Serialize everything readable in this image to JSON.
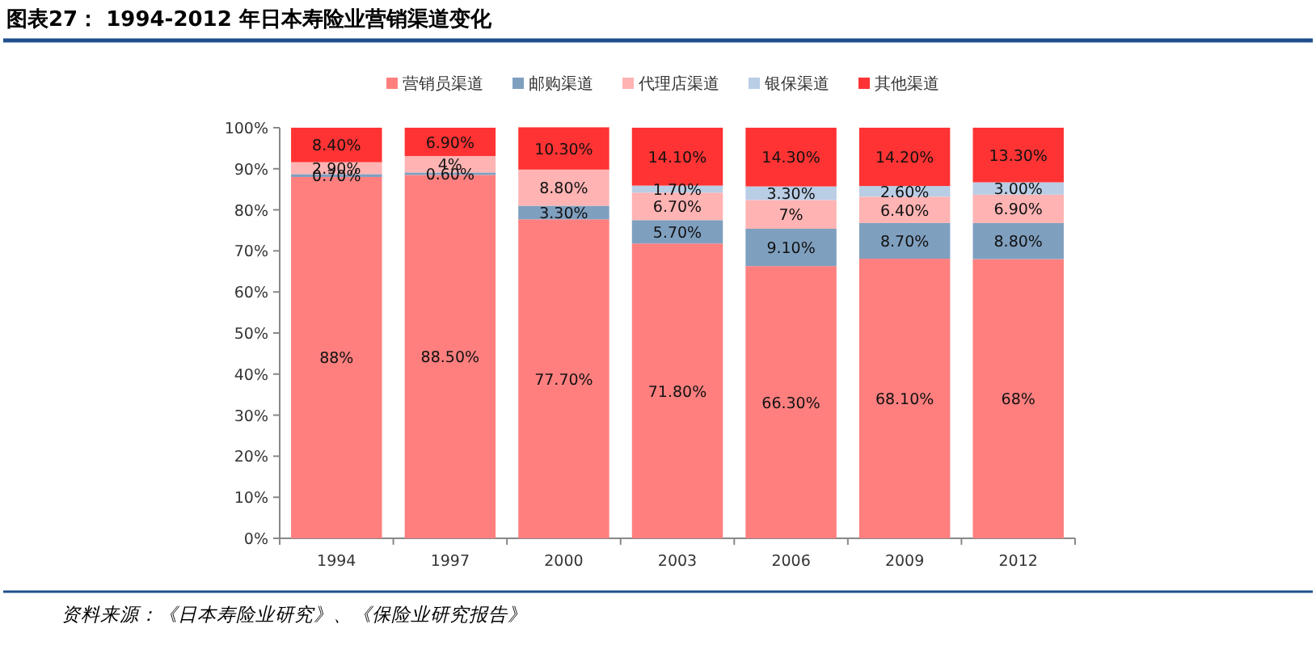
{
  "chart_data": {
    "type": "bar",
    "stacked": true,
    "title": "图表27： 1994-2012 年日本寿险业营销渠道变化",
    "categories": [
      "1994",
      "1997",
      "2000",
      "2003",
      "2006",
      "2009",
      "2012"
    ],
    "series": [
      {
        "name": "营销员渠道",
        "color": "#ff7f7f",
        "values": [
          88,
          88.5,
          77.7,
          71.8,
          66.3,
          68.1,
          68
        ],
        "value_labels": [
          "88%",
          "88.50%",
          "77.70%",
          "71.80%",
          "66.30%",
          "68.10%",
          "68%"
        ]
      },
      {
        "name": "邮购渠道",
        "color": "#7f9fbf",
        "values": [
          0.7,
          0.6,
          3.3,
          5.7,
          9.1,
          8.7,
          8.8
        ],
        "value_labels": [
          "0.70%",
          "0.60%",
          "3.30%",
          "5.70%",
          "9.10%",
          "8.70%",
          "8.80%"
        ]
      },
      {
        "name": "代理店渠道",
        "color": "#ffb3b3",
        "values": [
          2.9,
          4,
          8.8,
          6.7,
          7,
          6.4,
          6.9
        ],
        "value_labels": [
          "2.90%",
          "4%",
          "8.80%",
          "6.70%",
          "7%",
          "6.40%",
          "6.90%"
        ]
      },
      {
        "name": "银保渠道",
        "color": "#b9cde5",
        "values": [
          null,
          null,
          null,
          1.7,
          3.3,
          2.6,
          3.0
        ],
        "value_labels": [
          null,
          null,
          null,
          "1.70%",
          "3.30%",
          "2.60%",
          "3.00%"
        ]
      },
      {
        "name": "其他渠道",
        "color": "#ff3333",
        "values": [
          8.4,
          6.9,
          10.3,
          14.1,
          14.3,
          14.2,
          13.3
        ],
        "value_labels": [
          "8.40%",
          "6.90%",
          "10.30%",
          "14.10%",
          "14.30%",
          "14.20%",
          "13.30%"
        ]
      }
    ],
    "ylim": [
      0,
      100
    ],
    "yticks": [
      {
        "value": 0,
        "label": "0%"
      },
      {
        "value": 10,
        "label": "10%"
      },
      {
        "value": 20,
        "label": "20%"
      },
      {
        "value": 30,
        "label": "30%"
      },
      {
        "value": 40,
        "label": "40%"
      },
      {
        "value": 50,
        "label": "50%"
      },
      {
        "value": 60,
        "label": "60%"
      },
      {
        "value": 70,
        "label": "70%"
      },
      {
        "value": 80,
        "label": "80%"
      },
      {
        "value": 90,
        "label": "90%"
      },
      {
        "value": 100,
        "label": "100%"
      }
    ],
    "legend": "top",
    "annotations": [
      "资料来源：《日本寿险业研究》、《保险业研究报告》"
    ]
  }
}
